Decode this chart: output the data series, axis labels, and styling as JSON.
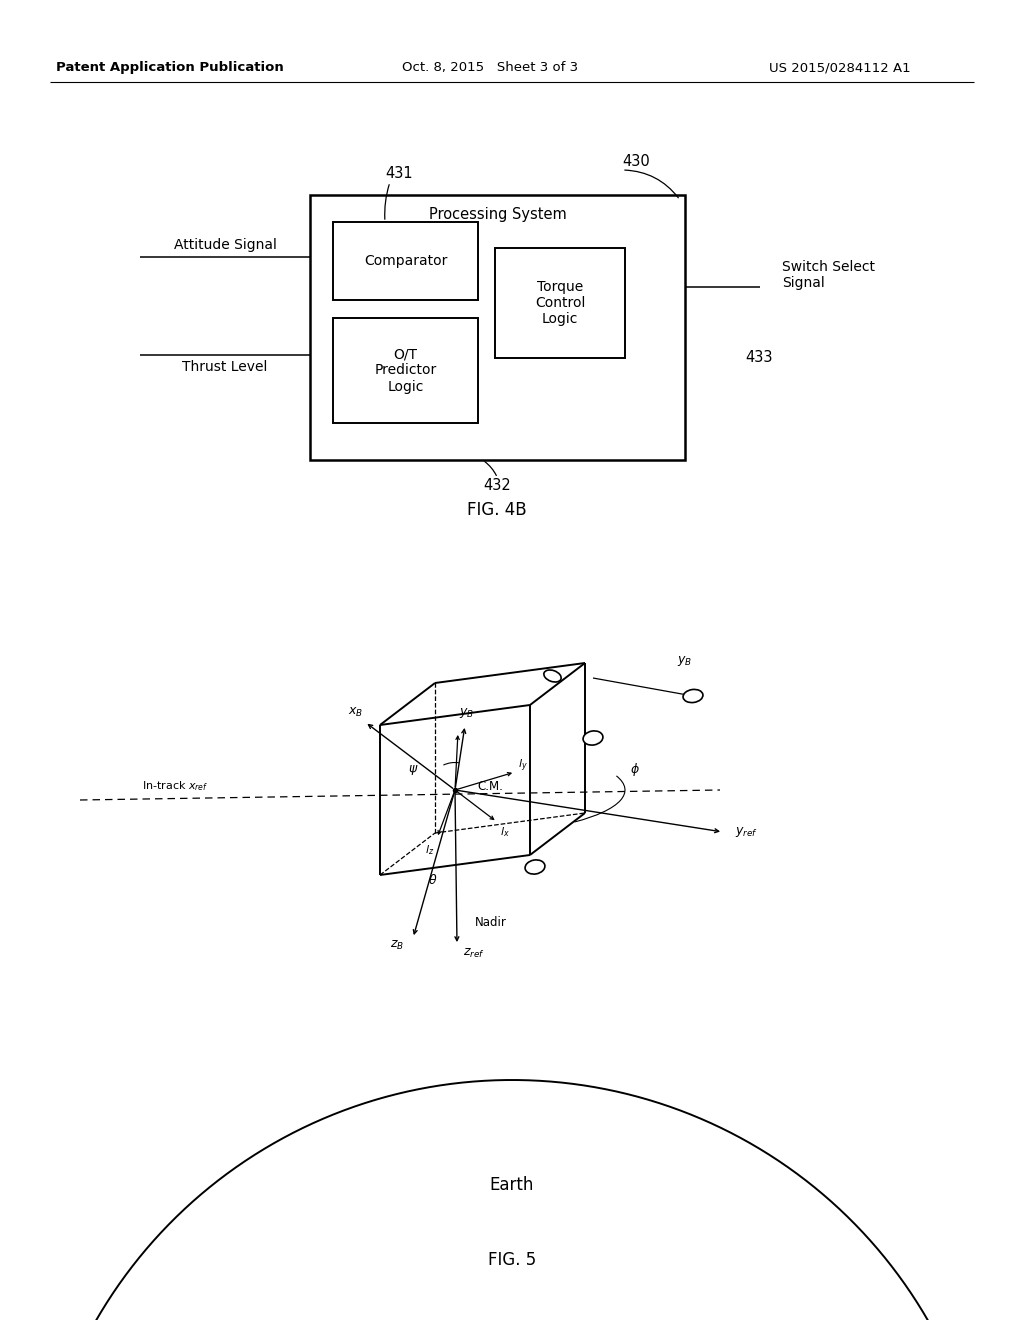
{
  "bg_color": "#ffffff",
  "text_color": "#000000",
  "header_left": "Patent Application Publication",
  "header_center": "Oct. 8, 2015   Sheet 3 of 3",
  "header_right": "US 2015/0284112 A1",
  "fig4b_label": "FIG. 4B",
  "fig5_label": "FIG. 5",
  "label_430": "430",
  "label_431": "431",
  "label_432": "432",
  "label_433": "433",
  "processing_system_text": "Processing System",
  "comparator_text": "Comparator",
  "ot_predictor_text": "O/T\nPredictor\nLogic",
  "torque_control_text": "Torque\nControl\nLogic",
  "attitude_signal_text": "Attitude Signal",
  "thrust_level_text": "Thrust Level",
  "switch_select_text": "Switch Select\nSignal",
  "earth_text": "Earth",
  "cm_text": "C.M."
}
